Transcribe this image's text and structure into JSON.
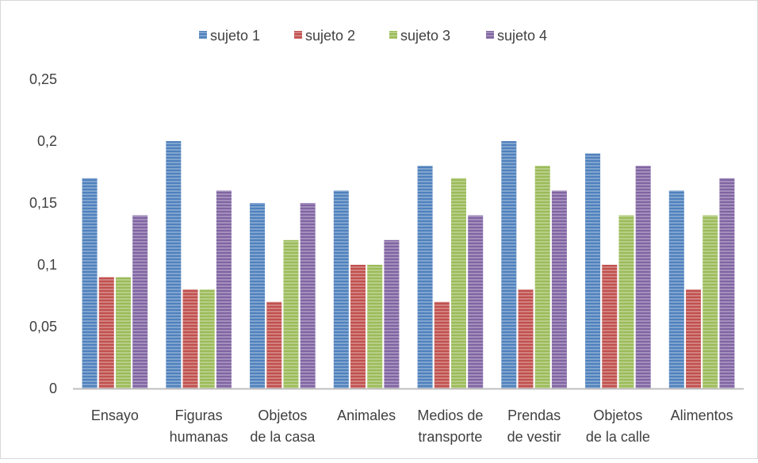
{
  "chart_data": {
    "type": "bar",
    "title": "",
    "xlabel": "",
    "ylabel": "",
    "categories": [
      [
        "Ensayo"
      ],
      [
        "Figuras",
        "humanas"
      ],
      [
        "Objetos",
        "de la casa"
      ],
      [
        "Animales"
      ],
      [
        "Medios de",
        "transporte"
      ],
      [
        "Prendas",
        "de vestir"
      ],
      [
        "Objetos",
        "de la calle"
      ],
      [
        "Alimentos"
      ]
    ],
    "series": [
      {
        "name": "sujeto 1",
        "color": "#4f81bd",
        "values": [
          0.17,
          0.2,
          0.15,
          0.16,
          0.18,
          0.2,
          0.19,
          0.16
        ]
      },
      {
        "name": "sujeto 2",
        "color": "#c0504d",
        "values": [
          0.09,
          0.08,
          0.07,
          0.1,
          0.07,
          0.08,
          0.1,
          0.08
        ]
      },
      {
        "name": "sujeto 3",
        "color": "#9bbb59",
        "values": [
          0.09,
          0.08,
          0.12,
          0.1,
          0.17,
          0.18,
          0.14,
          0.14
        ]
      },
      {
        "name": "sujeto 4",
        "color": "#8064a2",
        "values": [
          0.14,
          0.16,
          0.15,
          0.12,
          0.14,
          0.16,
          0.18,
          0.17
        ]
      }
    ],
    "ylim": [
      0,
      0.25
    ],
    "yticks": [
      0,
      0.05,
      0.1,
      0.15,
      0.2,
      0.25
    ],
    "ytick_labels": [
      "0",
      "0,05",
      "0,1",
      "0,15",
      "0,2",
      "0,25"
    ],
    "grid": false,
    "legend_position": "top"
  }
}
